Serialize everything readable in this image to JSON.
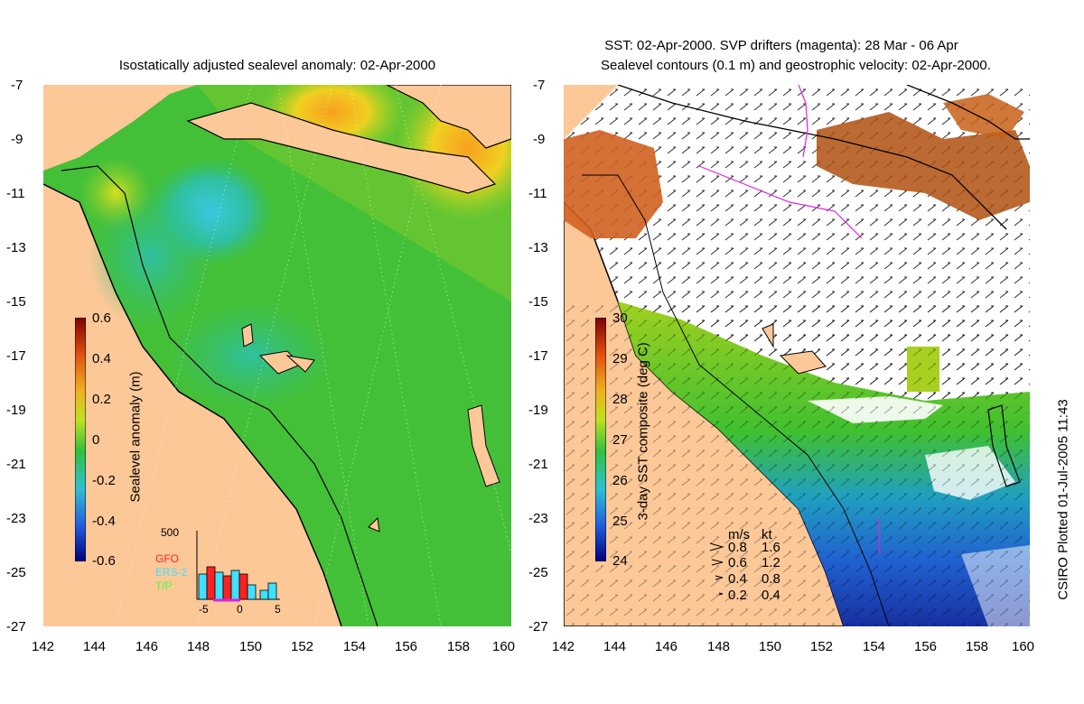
{
  "left_panel": {
    "title": "Isostatically adjusted sealevel anomaly: 02-Apr-2000",
    "colorbar_label": "Sealevel anomaly (m)",
    "colorbar_ticks": [
      "0.6",
      "0.4",
      "0.2",
      "0",
      "-0.2",
      "-0.4",
      "-0.6"
    ],
    "inset": {
      "ymax_label": "500",
      "legend": [
        {
          "name": "GFO",
          "color": "#ff2020"
        },
        {
          "name": "ERS-2",
          "color": "#40e0ff"
        },
        {
          "name": "T/P",
          "color": "#40ff40"
        }
      ],
      "x_ticks": [
        "-5",
        "0",
        "5"
      ]
    }
  },
  "right_panel": {
    "title_line1": "SST: 02-Apr-2000. SVP drifters (magenta): 28 Mar - 06 Apr",
    "title_line2": "Sealevel contours (0.1 m) and geostrophic velocity: 02-Apr-2000.",
    "colorbar_label": "3-day SST composite (deg C)",
    "colorbar_ticks": [
      "30",
      "29",
      "28",
      "27",
      "26",
      "25",
      "24"
    ],
    "velocity_legend": {
      "header_ms": "m/s",
      "header_kt": "kt",
      "rows": [
        {
          "ms": "0.8",
          "kt": "1.6"
        },
        {
          "ms": "0.6",
          "kt": "1.2"
        },
        {
          "ms": "0.4",
          "kt": "0.8"
        },
        {
          "ms": "0.2",
          "kt": "0.4"
        }
      ]
    }
  },
  "axes": {
    "lat_ticks": [
      "-7",
      "-9",
      "-11",
      "-13",
      "-15",
      "-17",
      "-19",
      "-21",
      "-23",
      "-25",
      "-27"
    ],
    "lon_ticks": [
      "142",
      "144",
      "146",
      "148",
      "150",
      "152",
      "154",
      "156",
      "158",
      "160"
    ]
  },
  "footer": "CSIRO Plotted 01-Jul-2005 11:43",
  "colors": {
    "land": "#fcc898",
    "ocean_green": "#3cc038",
    "sst_blue": "#2040c0"
  }
}
